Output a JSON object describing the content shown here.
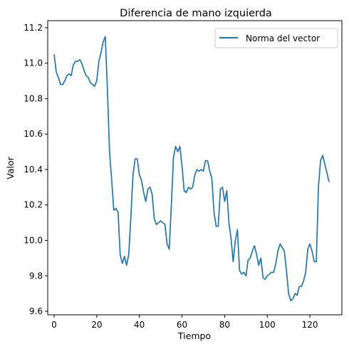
{
  "chart_data": {
    "type": "line",
    "title": "Diferencia de mano izquierda",
    "xlabel": "Tiempo",
    "ylabel": "Valor",
    "xlim": [
      -3,
      135
    ],
    "ylim": [
      9.58,
      11.24
    ],
    "xticks": [
      0,
      20,
      40,
      60,
      80,
      100,
      120
    ],
    "yticks": [
      9.6,
      9.8,
      10.0,
      10.2,
      10.4,
      10.6,
      10.8,
      11.0,
      11.2
    ],
    "ytick_labels": [
      "9.6",
      "9.8",
      "10.0",
      "10.2",
      "10.4",
      "10.6",
      "10.8",
      "11.0",
      "11.2"
    ],
    "grid": false,
    "legend_position": "top-right",
    "series": [
      {
        "name": "Norma del vector",
        "color": "#1f77b4",
        "x": [
          0,
          1,
          2,
          3,
          4,
          5,
          6,
          7,
          8,
          9,
          10,
          11,
          12,
          13,
          14,
          15,
          16,
          17,
          18,
          19,
          20,
          21,
          22,
          23,
          24,
          25,
          26,
          27,
          28,
          29,
          30,
          31,
          32,
          33,
          34,
          35,
          36,
          37,
          38,
          39,
          40,
          41,
          42,
          43,
          44,
          45,
          46,
          47,
          48,
          49,
          50,
          51,
          52,
          53,
          54,
          55,
          56,
          57,
          58,
          59,
          60,
          61,
          62,
          63,
          64,
          65,
          66,
          67,
          68,
          69,
          70,
          71,
          72,
          73,
          74,
          75,
          76,
          77,
          78,
          79,
          80,
          81,
          82,
          83,
          84,
          85,
          86,
          87,
          88,
          89,
          90,
          91,
          92,
          93,
          94,
          95,
          96,
          97,
          98,
          99,
          100,
          101,
          102,
          103,
          104,
          105,
          106,
          107,
          108,
          109,
          110,
          111,
          112,
          113,
          114,
          115,
          116,
          117,
          118,
          119,
          120,
          121,
          122,
          123,
          124,
          125,
          126,
          127,
          128,
          129
        ],
        "values": [
          11.05,
          10.95,
          10.92,
          10.88,
          10.88,
          10.9,
          10.93,
          10.94,
          10.93,
          10.99,
          11.01,
          11.01,
          11.02,
          11.0,
          10.96,
          10.93,
          10.92,
          10.89,
          10.88,
          10.87,
          10.9,
          11.01,
          11.06,
          11.12,
          11.15,
          10.85,
          10.5,
          10.34,
          10.17,
          10.18,
          10.16,
          9.92,
          9.87,
          9.91,
          9.86,
          9.92,
          10.13,
          10.37,
          10.46,
          10.46,
          10.37,
          10.34,
          10.27,
          10.22,
          10.29,
          10.3,
          10.26,
          10.12,
          10.09,
          10.1,
          10.11,
          10.1,
          10.09,
          9.98,
          9.95,
          10.2,
          10.47,
          10.53,
          10.5,
          10.53,
          10.42,
          10.28,
          10.27,
          10.3,
          10.29,
          10.3,
          10.37,
          10.4,
          10.39,
          10.4,
          10.39,
          10.45,
          10.45,
          10.39,
          10.35,
          10.16,
          10.08,
          10.08,
          10.29,
          10.3,
          10.22,
          10.28,
          10.1,
          10.01,
          9.88,
          10.0,
          10.06,
          9.83,
          9.81,
          9.82,
          9.8,
          9.89,
          9.9,
          9.94,
          9.97,
          9.92,
          9.86,
          9.9,
          9.79,
          9.78,
          9.8,
          9.81,
          9.82,
          9.82,
          9.87,
          9.94,
          9.98,
          9.96,
          9.94,
          9.83,
          9.7,
          9.66,
          9.67,
          9.7,
          9.69,
          9.74,
          9.74,
          9.77,
          9.82,
          9.95,
          9.98,
          9.94,
          9.88,
          9.88,
          10.3,
          10.45,
          10.48,
          10.43,
          10.38,
          10.33
        ]
      }
    ]
  }
}
